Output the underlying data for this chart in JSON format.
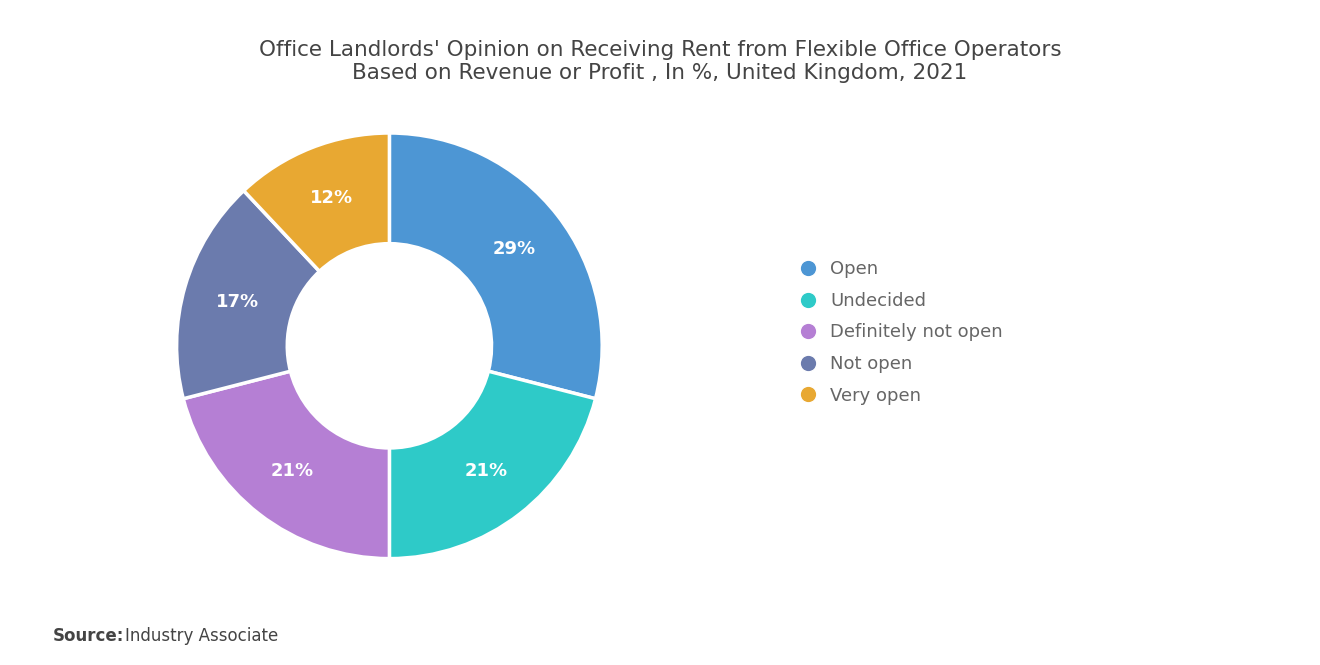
{
  "title": "Office Landlords' Opinion on Receiving Rent from Flexible Office Operators\nBased on Revenue or Profit , In %, United Kingdom, 2021",
  "slices": [
    {
      "label": "Open",
      "value": 29,
      "color": "#4D96D4",
      "pct": "29%"
    },
    {
      "label": "Undecided",
      "value": 21,
      "color": "#2ECAC8",
      "pct": "21%"
    },
    {
      "label": "Definitely not open",
      "value": 21,
      "color": "#B57FD4",
      "pct": "21%"
    },
    {
      "label": "Not open",
      "value": 17,
      "color": "#6B7BAD",
      "pct": "17%"
    },
    {
      "label": "Very open",
      "value": 12,
      "color": "#E8A832",
      "pct": "12%"
    }
  ],
  "source_bold": "Source:",
  "source_rest": "  Industry Associate",
  "background_color": "#ffffff",
  "title_fontsize": 15.5,
  "label_fontsize": 13,
  "legend_fontsize": 13,
  "source_fontsize": 12
}
